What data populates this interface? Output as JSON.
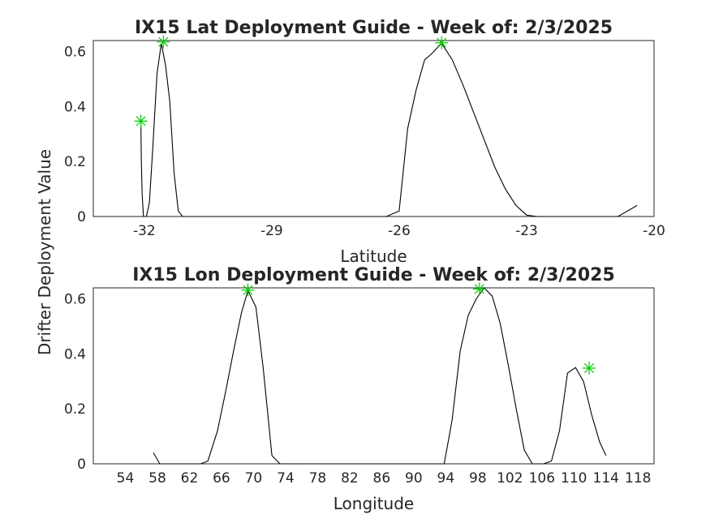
{
  "chart_data": [
    {
      "type": "line",
      "title": "IX15 Lat Deployment Guide - Week of: 2/3/2025",
      "xlabel": "Latitude",
      "ylabel": "Drifter Deployment Value",
      "xlim": [
        -33.2,
        -20
      ],
      "ylim": [
        0,
        0.64
      ],
      "xticks": [
        -32,
        -29,
        -26,
        -23,
        -20
      ],
      "yticks": [
        0,
        0.2,
        0.4,
        0.6
      ],
      "grid": true,
      "series": [
        {
          "x": [
            -32.08,
            -32.07,
            -32.05,
            -32.02,
            -31.95,
            -31.88,
            -31.8,
            -31.7,
            -31.6,
            -31.5,
            -31.4,
            -31.3,
            -31.2,
            -31.1,
            -26.3,
            -26.0,
            -25.8,
            -25.6,
            -25.4,
            -25.25,
            -25.0,
            -24.75,
            -24.5,
            -24.25,
            -24.0,
            -23.75,
            -23.5,
            -23.25,
            -23.0,
            -22.75,
            -20.85,
            -20.4
          ],
          "y": [
            0.34,
            0.2,
            0.08,
            0.0,
            0.0,
            0.05,
            0.25,
            0.52,
            0.63,
            0.55,
            0.42,
            0.16,
            0.02,
            0.0,
            0.0,
            0.02,
            0.32,
            0.46,
            0.57,
            0.59,
            0.63,
            0.57,
            0.48,
            0.38,
            0.28,
            0.18,
            0.1,
            0.04,
            0.005,
            0.0,
            0.0,
            0.04
          ]
        }
      ],
      "markers": {
        "color": "#00cc00",
        "points": [
          [
            -32.08,
            0.347
          ],
          [
            -31.55,
            0.635
          ],
          [
            -25.0,
            0.632
          ]
        ]
      }
    },
    {
      "type": "line",
      "title": "IX15 Lon Deployment Guide - Week of: 2/3/2025",
      "xlabel": "Longitude",
      "ylabel": "Drifter Deployment Value",
      "xlim": [
        50,
        120
      ],
      "ylim": [
        0,
        0.64
      ],
      "xticks": [
        54,
        58,
        62,
        66,
        70,
        74,
        78,
        82,
        86,
        90,
        94,
        98,
        102,
        106,
        110,
        114,
        118
      ],
      "yticks": [
        0,
        0.2,
        0.4,
        0.6
      ],
      "grid": true,
      "series": [
        {
          "x": [
            57.5,
            58.3,
            62.2,
            63.4,
            64.3,
            65.5,
            66.5,
            67.5,
            68.5,
            69.3,
            70.3,
            71.2,
            72.3,
            73.3,
            74.5,
            93.8,
            94.8,
            95.8,
            96.8,
            97.8,
            98.8,
            99.8,
            100.8,
            101.8,
            102.8,
            103.8,
            104.8,
            106.2,
            107.2,
            108.2,
            109.2,
            110.2,
            111.2,
            112.2,
            113.2,
            114.0
          ],
          "y": [
            0.04,
            0.0,
            0.0,
            0.0,
            0.01,
            0.12,
            0.26,
            0.41,
            0.55,
            0.63,
            0.57,
            0.35,
            0.03,
            0.0,
            0.0,
            0.0,
            0.16,
            0.41,
            0.54,
            0.6,
            0.64,
            0.61,
            0.51,
            0.36,
            0.2,
            0.05,
            0.0,
            0.0,
            0.01,
            0.12,
            0.33,
            0.35,
            0.3,
            0.18,
            0.08,
            0.03
          ]
        }
      ],
      "markers": {
        "color": "#00cc00",
        "points": [
          [
            69.3,
            0.632
          ],
          [
            98.2,
            0.636
          ],
          [
            111.9,
            0.348
          ]
        ]
      }
    }
  ]
}
